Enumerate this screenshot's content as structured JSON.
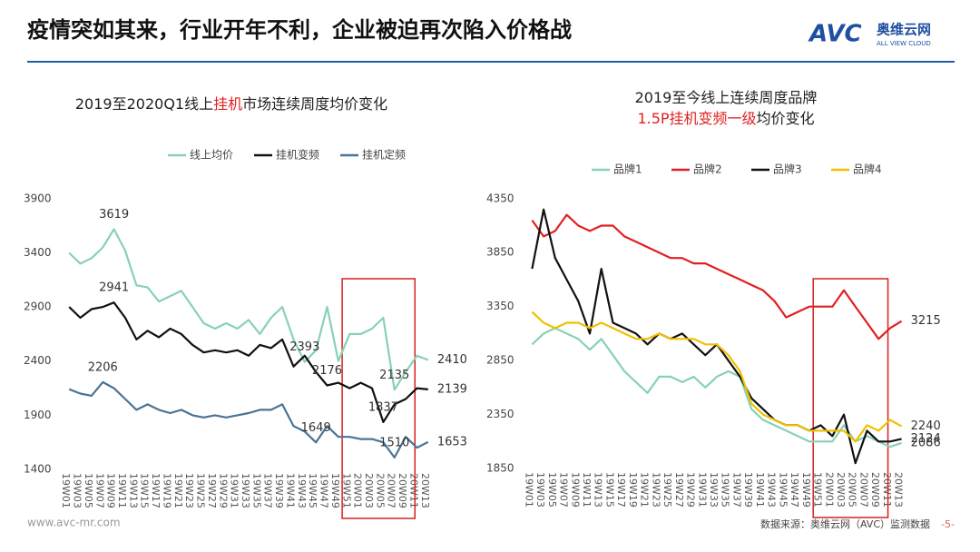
{
  "header": {
    "title": "疫情突如其来，行业开年不利，企业被迫再次陷入价格战",
    "logo": "AVC",
    "logo_cn": "奥维云网",
    "logo_en": "ALL VIEW CLOUD"
  },
  "footer": {
    "site": "www.avc-mr.com",
    "source": "数据来源：奥维云网（AVC）监测数据",
    "page": "-5-"
  },
  "chart_data": [
    {
      "type": "line",
      "title": [
        [
          {
            "text": "2019至2020Q1线上",
            "color": "#222222"
          },
          {
            "text": "挂机",
            "color": "#e02020"
          },
          {
            "text": "市场连续周度均价变化",
            "color": "#222222"
          }
        ]
      ],
      "categories": [
        "19W01",
        "19W03",
        "19W05",
        "19W07",
        "19W09",
        "19W11",
        "19W13",
        "19W15",
        "19W17",
        "19W19",
        "19W21",
        "19W23",
        "19W25",
        "19W27",
        "19W29",
        "19W31",
        "19W33",
        "19W35",
        "19W37",
        "19W39",
        "19W41",
        "19W43",
        "19W45",
        "19W47",
        "19W49",
        "19W51",
        "20W01",
        "20W03",
        "20W05",
        "20W07",
        "20W09",
        "20W11",
        "20W13"
      ],
      "ylim": [
        1400,
        4100
      ],
      "yticks": [
        1400,
        1900,
        2400,
        2900,
        3400,
        3900
      ],
      "grid": false,
      "series": [
        {
          "name": "线上均价",
          "color": "#88d1b5",
          "values": [
            3400,
            3300,
            3350,
            3450,
            3619,
            3420,
            3100,
            3080,
            2950,
            3000,
            3050,
            2900,
            2750,
            2700,
            2750,
            2700,
            2780,
            2650,
            2800,
            2900,
            2600,
            2393,
            2500,
            2900,
            2400,
            2650,
            2650,
            2700,
            2800,
            2135,
            2300,
            2450,
            2410
          ],
          "value_labels": [
            null,
            null,
            null,
            null,
            "3619",
            null,
            null,
            null,
            null,
            null,
            null,
            null,
            null,
            null,
            null,
            null,
            null,
            null,
            null,
            null,
            null,
            "2393",
            null,
            null,
            null,
            null,
            null,
            null,
            null,
            "2135",
            null,
            null,
            "2410"
          ]
        },
        {
          "name": "挂机变频",
          "color": "#111111",
          "values": [
            2900,
            2800,
            2880,
            2900,
            2941,
            2800,
            2600,
            2680,
            2620,
            2700,
            2650,
            2550,
            2480,
            2500,
            2480,
            2500,
            2450,
            2550,
            2520,
            2600,
            2350,
            2450,
            2300,
            2176,
            2200,
            2150,
            2200,
            2150,
            1837,
            2000,
            2050,
            2150,
            2139
          ],
          "value_labels": [
            null,
            null,
            null,
            null,
            "2941",
            null,
            null,
            null,
            null,
            null,
            null,
            null,
            null,
            null,
            null,
            null,
            null,
            null,
            null,
            null,
            null,
            null,
            null,
            "2176",
            null,
            null,
            null,
            null,
            "1837",
            null,
            null,
            null,
            "2139"
          ]
        },
        {
          "name": "挂机定频",
          "color": "#4a7394",
          "values": [
            2140,
            2100,
            2080,
            2206,
            2150,
            2050,
            1950,
            2000,
            1950,
            1920,
            1950,
            1900,
            1880,
            1900,
            1880,
            1900,
            1920,
            1950,
            1950,
            2000,
            1800,
            1750,
            1649,
            1800,
            1700,
            1700,
            1680,
            1680,
            1650,
            1510,
            1700,
            1600,
            1653
          ],
          "value_labels": [
            null,
            null,
            null,
            "2206",
            null,
            null,
            null,
            null,
            null,
            null,
            null,
            null,
            null,
            null,
            null,
            null,
            null,
            null,
            null,
            null,
            null,
            null,
            "1649",
            null,
            null,
            null,
            null,
            null,
            null,
            "1510",
            null,
            null,
            "1653"
          ]
        }
      ]
    },
    {
      "type": "line",
      "title": [
        [
          {
            "text": "2019至今线上连续周度品牌",
            "color": "#222222"
          }
        ],
        [
          {
            "text": "1.5P挂机变频一级",
            "color": "#e02020"
          },
          {
            "text": "均价变化",
            "color": "#222222"
          }
        ]
      ],
      "categories": [
        "19W01",
        "19W03",
        "19W05",
        "19W07",
        "19W09",
        "19W11",
        "19W13",
        "19W15",
        "19W17",
        "19W19",
        "19W21",
        "19W23",
        "19W25",
        "19W27",
        "19W29",
        "19W31",
        "19W33",
        "19W35",
        "19W37",
        "19W39",
        "19W41",
        "19W43",
        "19W45",
        "19W47",
        "19W49",
        "19W51",
        "20W01",
        "20W03",
        "20W05",
        "20W07",
        "20W09",
        "20W11",
        "20W13"
      ],
      "ylim": [
        1850,
        4550
      ],
      "yticks": [
        1850,
        2350,
        2850,
        3350,
        3850,
        4350
      ],
      "grid": false,
      "series": [
        {
          "name": "品牌1",
          "color": "#88d1b5",
          "values": [
            3000,
            3100,
            3150,
            3100,
            3050,
            2950,
            3050,
            2900,
            2750,
            2650,
            2550,
            2700,
            2700,
            2650,
            2700,
            2600,
            2700,
            2750,
            2700,
            2400,
            2300,
            2250,
            2200,
            2150,
            2100,
            2100,
            2100,
            2250,
            2100,
            2150,
            2100,
            2050,
            2086
          ],
          "value_labels": [
            null,
            null,
            null,
            null,
            null,
            null,
            null,
            null,
            null,
            null,
            null,
            null,
            null,
            null,
            null,
            null,
            null,
            null,
            null,
            null,
            null,
            null,
            null,
            null,
            null,
            null,
            null,
            null,
            null,
            null,
            null,
            null,
            "2086"
          ]
        },
        {
          "name": "品牌2",
          "color": "#e02020",
          "values": [
            4150,
            4000,
            4050,
            4200,
            4100,
            4050,
            4100,
            4100,
            4000,
            3950,
            3900,
            3850,
            3800,
            3800,
            3750,
            3750,
            3700,
            3650,
            3600,
            3550,
            3500,
            3400,
            3250,
            3300,
            3350,
            3350,
            3350,
            3500,
            3350,
            3200,
            3050,
            3150,
            3215
          ],
          "value_labels": [
            null,
            null,
            null,
            null,
            null,
            null,
            null,
            null,
            null,
            null,
            null,
            null,
            null,
            null,
            null,
            null,
            null,
            null,
            null,
            null,
            null,
            null,
            null,
            null,
            null,
            null,
            null,
            null,
            null,
            null,
            null,
            null,
            "3215"
          ]
        },
        {
          "name": "品牌3",
          "color": "#111111",
          "values": [
            3700,
            4250,
            3800,
            3600,
            3400,
            3100,
            3700,
            3200,
            3150,
            3100,
            3000,
            3100,
            3050,
            3100,
            3000,
            2900,
            3000,
            2850,
            2700,
            2500,
            2400,
            2300,
            2250,
            2250,
            2200,
            2250,
            2150,
            2350,
            1900,
            2200,
            2100,
            2100,
            2124
          ],
          "value_labels": [
            null,
            null,
            null,
            null,
            null,
            null,
            null,
            null,
            null,
            null,
            null,
            null,
            null,
            null,
            null,
            null,
            null,
            null,
            null,
            null,
            null,
            null,
            null,
            null,
            null,
            null,
            null,
            null,
            null,
            null,
            null,
            null,
            "2124"
          ]
        },
        {
          "name": "品牌4",
          "color": "#f0c000",
          "values": [
            3300,
            3200,
            3150,
            3200,
            3200,
            3150,
            3200,
            3150,
            3100,
            3050,
            3050,
            3100,
            3050,
            3050,
            3050,
            3000,
            3000,
            2900,
            2750,
            2450,
            2350,
            2300,
            2250,
            2250,
            2200,
            2200,
            2200,
            2200,
            2100,
            2250,
            2200,
            2300,
            2240
          ],
          "value_labels": [
            null,
            null,
            null,
            null,
            null,
            null,
            null,
            null,
            null,
            null,
            null,
            null,
            null,
            null,
            null,
            null,
            null,
            null,
            null,
            null,
            null,
            null,
            null,
            null,
            null,
            null,
            null,
            null,
            null,
            null,
            null,
            null,
            "2240"
          ]
        }
      ]
    }
  ]
}
